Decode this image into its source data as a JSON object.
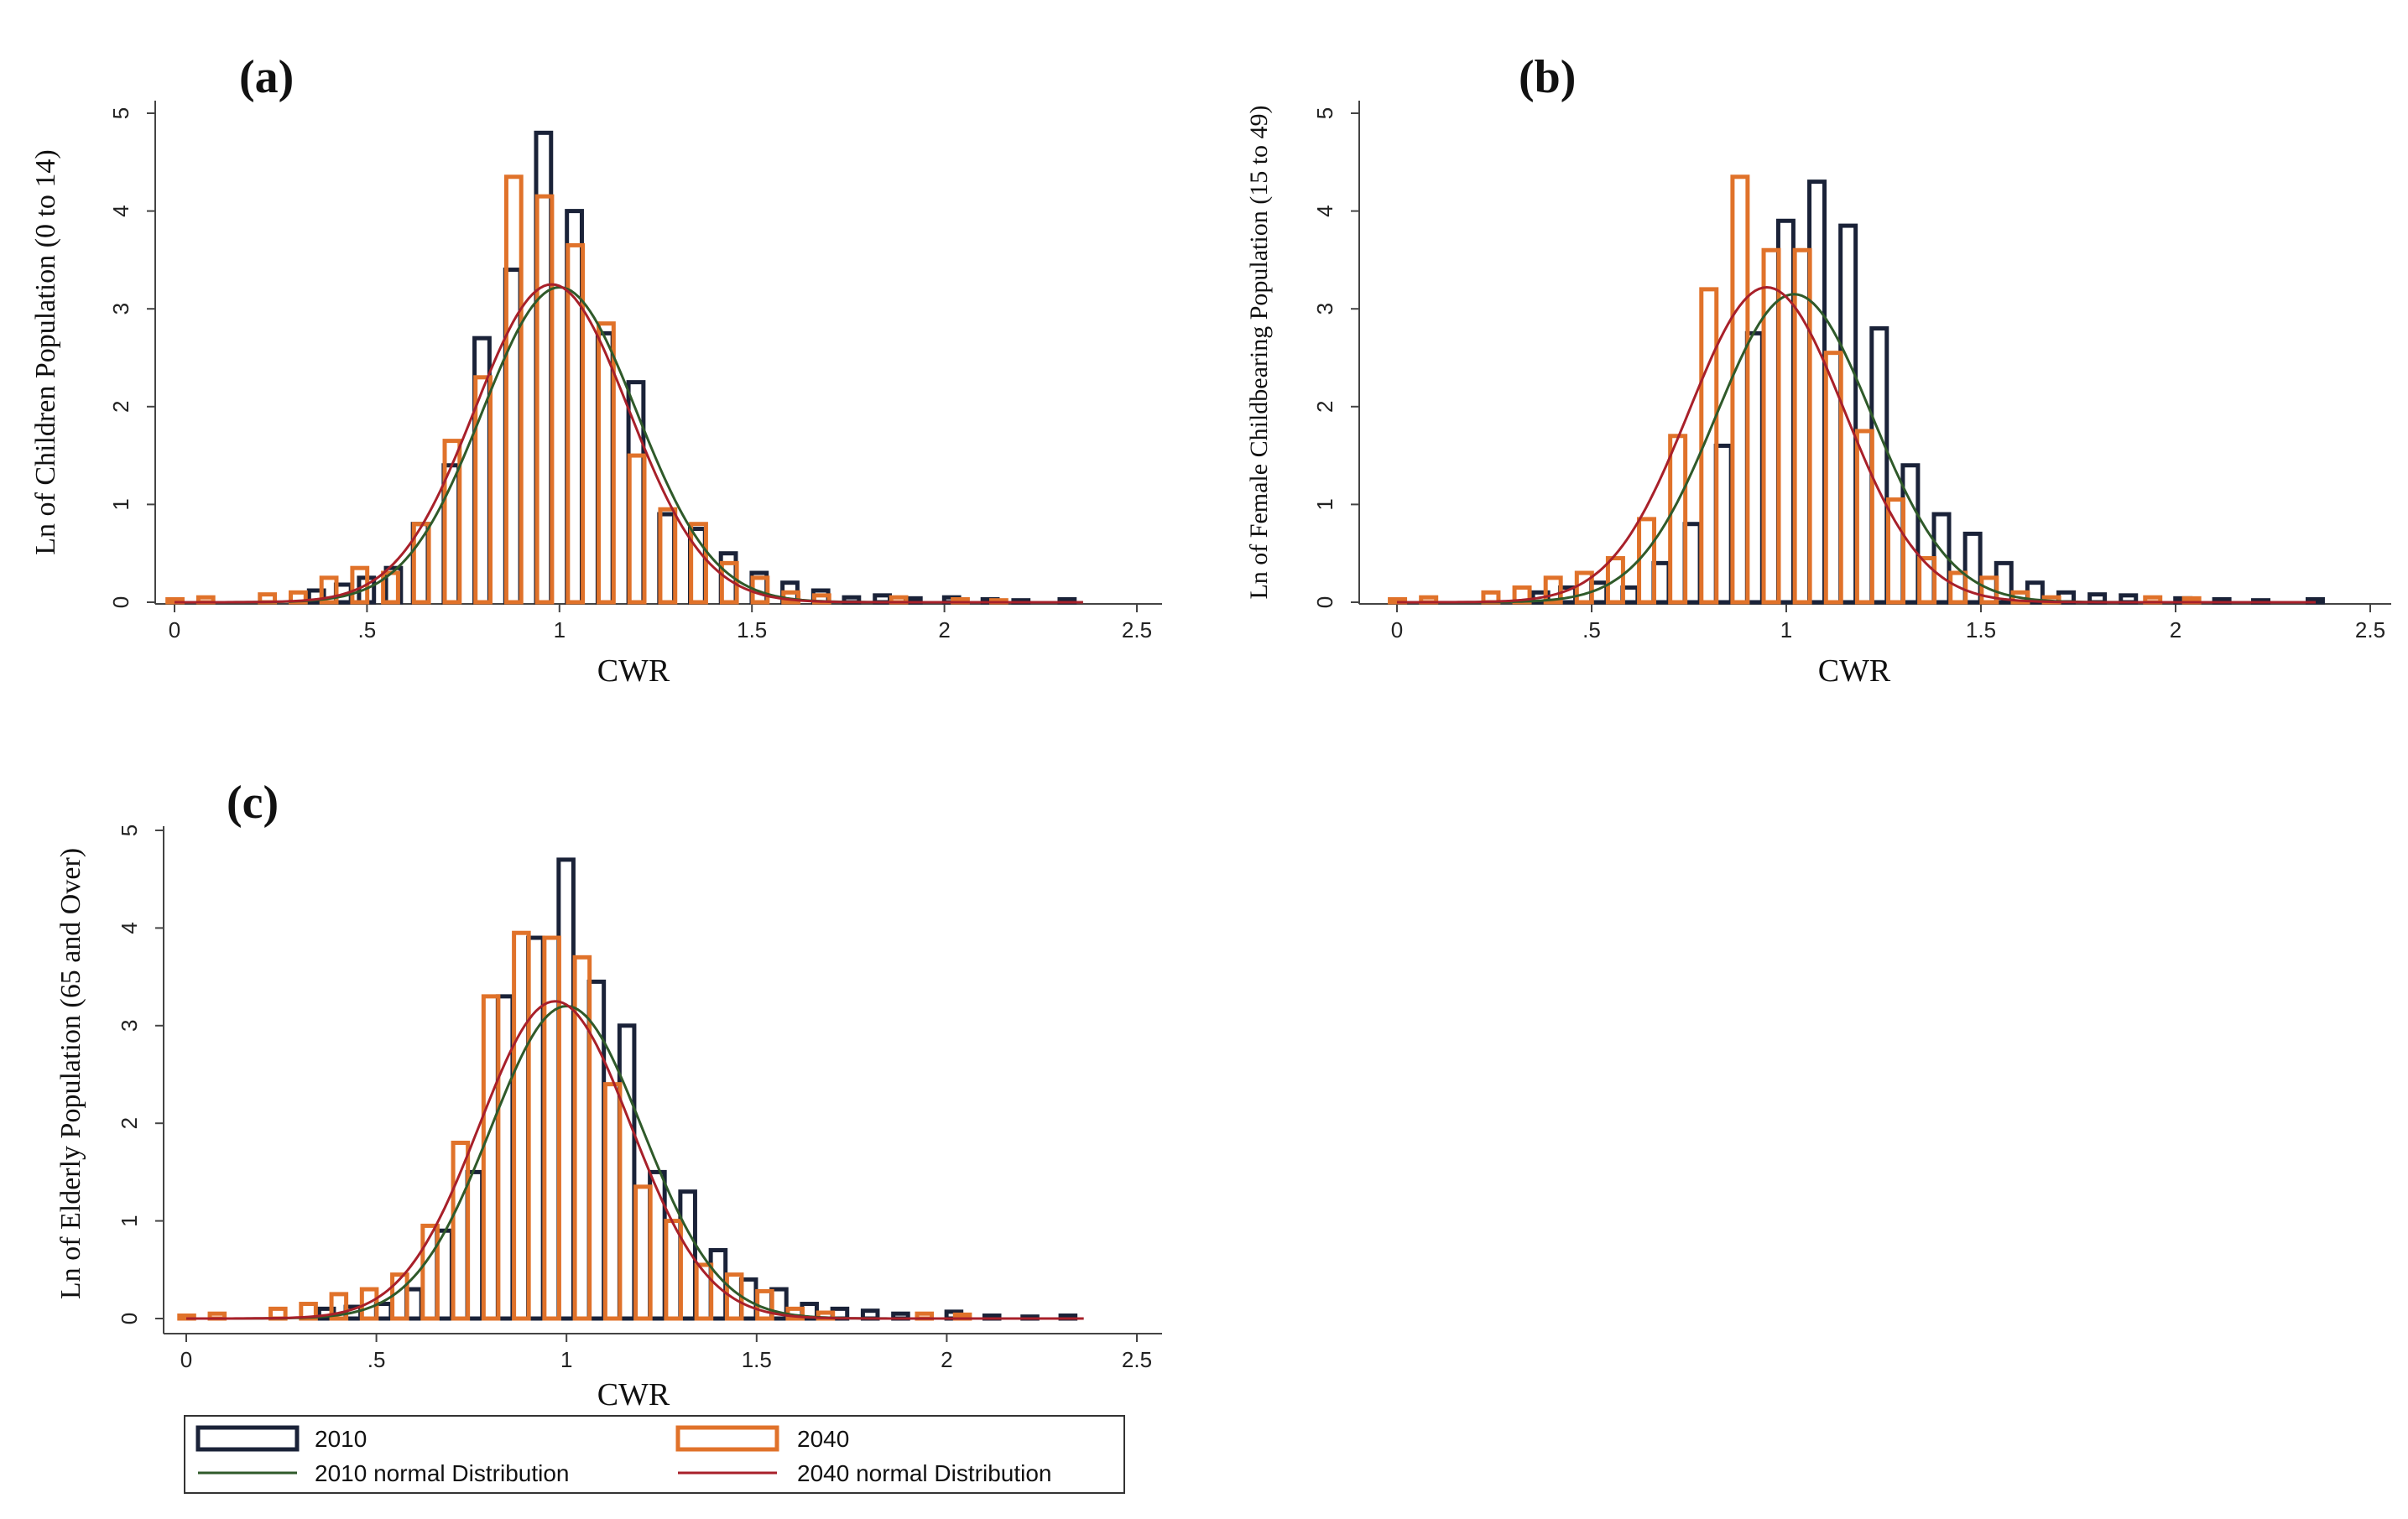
{
  "figure": {
    "legend": {
      "entries": [
        {
          "label": "2010",
          "kind": "bar"
        },
        {
          "label": "2040",
          "kind": "bar"
        },
        {
          "label": "2010 normal Distribution",
          "kind": "line"
        },
        {
          "label": "2040 normal Distribution",
          "kind": "line"
        }
      ]
    },
    "colors": {
      "s2010": "#1a2238",
      "s2040": "#e0722a",
      "n2010": "#2f5a2a",
      "n2040": "#a8202a"
    }
  },
  "chart_data": [
    {
      "type": "bar",
      "panel_label": "(a)",
      "xlabel": "CWR",
      "ylabel": "Ln of Children Population (0 to 14)",
      "xlim": [
        0,
        2.5
      ],
      "ylim": [
        0,
        5
      ],
      "xticks": [
        0,
        0.5,
        1,
        1.5,
        2,
        2.5
      ],
      "xtick_labels": [
        "0",
        ".5",
        "1",
        "1.5",
        "2",
        "2.5"
      ],
      "yticks": [
        0,
        1,
        2,
        3,
        4,
        5
      ],
      "ytick_labels": [
        "0",
        "1",
        "2",
        "3",
        "4",
        "5"
      ],
      "bin_width": 0.0625,
      "series": [
        {
          "name": "2010",
          "bins": [
            [
              0.35,
              0.12
            ],
            [
              0.42,
              0.18
            ],
            [
              0.48,
              0.25
            ],
            [
              0.55,
              0.35
            ],
            [
              0.62,
              0.8
            ],
            [
              0.7,
              1.4
            ],
            [
              0.78,
              2.7
            ],
            [
              0.86,
              3.4
            ],
            [
              0.94,
              4.8
            ],
            [
              1.02,
              4.0
            ],
            [
              1.1,
              2.75
            ],
            [
              1.18,
              2.25
            ],
            [
              1.26,
              0.9
            ],
            [
              1.34,
              0.75
            ],
            [
              1.42,
              0.5
            ],
            [
              1.5,
              0.3
            ],
            [
              1.58,
              0.2
            ],
            [
              1.66,
              0.12
            ],
            [
              1.74,
              0.05
            ],
            [
              1.82,
              0.07
            ],
            [
              1.9,
              0.04
            ],
            [
              2.0,
              0.05
            ],
            [
              2.1,
              0.03
            ],
            [
              2.18,
              0.02
            ],
            [
              2.3,
              0.03
            ]
          ]
        },
        {
          "name": "2040",
          "bins": [
            [
              0.02,
              0.03
            ],
            [
              0.1,
              0.05
            ],
            [
              0.26,
              0.08
            ],
            [
              0.34,
              0.1
            ],
            [
              0.42,
              0.25
            ],
            [
              0.5,
              0.35
            ],
            [
              0.58,
              0.3
            ],
            [
              0.66,
              0.8
            ],
            [
              0.74,
              1.65
            ],
            [
              0.82,
              2.3
            ],
            [
              0.9,
              4.35
            ],
            [
              0.98,
              4.15
            ],
            [
              1.06,
              3.65
            ],
            [
              1.14,
              2.85
            ],
            [
              1.22,
              1.5
            ],
            [
              1.3,
              0.95
            ],
            [
              1.38,
              0.8
            ],
            [
              1.46,
              0.4
            ],
            [
              1.54,
              0.25
            ],
            [
              1.62,
              0.1
            ],
            [
              1.7,
              0.07
            ],
            [
              1.9,
              0.05
            ],
            [
              2.06,
              0.03
            ],
            [
              2.16,
              0.02
            ]
          ]
        }
      ],
      "normal_curves": [
        {
          "name": "2010 normal Distribution",
          "mean": 1.0,
          "peak": 3.22,
          "sd": 0.2
        },
        {
          "name": "2040 normal Distribution",
          "mean": 0.98,
          "peak": 3.25,
          "sd": 0.2
        }
      ]
    },
    {
      "type": "bar",
      "panel_label": "(b)",
      "xlabel": "CWR",
      "ylabel": "Ln of Female Childbearing Population (15 to 49)",
      "xlim": [
        0,
        2.5
      ],
      "ylim": [
        0,
        5
      ],
      "xticks": [
        0,
        0.5,
        1,
        1.5,
        2,
        2.5
      ],
      "xtick_labels": [
        "0",
        ".5",
        "1",
        "1.5",
        "2",
        "2.5"
      ],
      "yticks": [
        0,
        1,
        2,
        3,
        4,
        5
      ],
      "ytick_labels": [
        "0",
        "1",
        "2",
        "3",
        "4",
        "5"
      ],
      "bin_width": 0.0625,
      "series": [
        {
          "name": "2010",
          "bins": [
            [
              0.35,
              0.1
            ],
            [
              0.42,
              0.15
            ],
            [
              0.5,
              0.2
            ],
            [
              0.58,
              0.15
            ],
            [
              0.66,
              0.4
            ],
            [
              0.74,
              0.8
            ],
            [
              0.82,
              1.6
            ],
            [
              0.9,
              2.75
            ],
            [
              0.98,
              3.9
            ],
            [
              1.06,
              4.3
            ],
            [
              1.14,
              3.85
            ],
            [
              1.22,
              2.8
            ],
            [
              1.3,
              1.4
            ],
            [
              1.38,
              0.9
            ],
            [
              1.46,
              0.7
            ],
            [
              1.54,
              0.4
            ],
            [
              1.62,
              0.2
            ],
            [
              1.7,
              0.1
            ],
            [
              1.78,
              0.08
            ],
            [
              1.86,
              0.07
            ],
            [
              2.0,
              0.04
            ],
            [
              2.1,
              0.03
            ],
            [
              2.2,
              0.02
            ],
            [
              2.34,
              0.03
            ]
          ]
        },
        {
          "name": "2040",
          "bins": [
            [
              0.02,
              0.03
            ],
            [
              0.1,
              0.05
            ],
            [
              0.26,
              0.1
            ],
            [
              0.34,
              0.15
            ],
            [
              0.42,
              0.25
            ],
            [
              0.5,
              0.3
            ],
            [
              0.58,
              0.45
            ],
            [
              0.66,
              0.85
            ],
            [
              0.74,
              1.7
            ],
            [
              0.82,
              3.2
            ],
            [
              0.9,
              4.35
            ],
            [
              0.98,
              3.6
            ],
            [
              1.06,
              3.6
            ],
            [
              1.14,
              2.55
            ],
            [
              1.22,
              1.75
            ],
            [
              1.3,
              1.05
            ],
            [
              1.38,
              0.45
            ],
            [
              1.46,
              0.3
            ],
            [
              1.54,
              0.25
            ],
            [
              1.62,
              0.1
            ],
            [
              1.7,
              0.05
            ],
            [
              1.96,
              0.05
            ],
            [
              2.06,
              0.04
            ]
          ]
        }
      ],
      "normal_curves": [
        {
          "name": "2010 normal Distribution",
          "mean": 1.02,
          "peak": 3.15,
          "sd": 0.2
        },
        {
          "name": "2040 normal Distribution",
          "mean": 0.95,
          "peak": 3.22,
          "sd": 0.2
        }
      ]
    },
    {
      "type": "bar",
      "panel_label": "(c)",
      "xlabel": "CWR",
      "ylabel": "Ln of Elderly Population (65 and Over)",
      "xlim": [
        0,
        2.5
      ],
      "ylim": [
        0,
        5
      ],
      "xticks": [
        0,
        0.5,
        1,
        1.5,
        2,
        2.5
      ],
      "xtick_labels": [
        "0",
        ".5",
        "1",
        "1.5",
        "2",
        "2.5"
      ],
      "yticks": [
        0,
        1,
        2,
        3,
        4,
        5
      ],
      "ytick_labels": [
        "0",
        "1",
        "2",
        "3",
        "4",
        "5"
      ],
      "bin_width": 0.0625,
      "series": [
        {
          "name": "2010",
          "bins": [
            [
              0.35,
              0.1
            ],
            [
              0.42,
              0.12
            ],
            [
              0.5,
              0.15
            ],
            [
              0.58,
              0.3
            ],
            [
              0.66,
              0.9
            ],
            [
              0.74,
              1.5
            ],
            [
              0.82,
              3.3
            ],
            [
              0.9,
              3.9
            ],
            [
              0.98,
              4.7
            ],
            [
              1.06,
              3.45
            ],
            [
              1.14,
              3.0
            ],
            [
              1.22,
              1.5
            ],
            [
              1.3,
              1.3
            ],
            [
              1.38,
              0.7
            ],
            [
              1.46,
              0.4
            ],
            [
              1.54,
              0.3
            ],
            [
              1.62,
              0.15
            ],
            [
              1.7,
              0.1
            ],
            [
              1.78,
              0.08
            ],
            [
              1.86,
              0.05
            ],
            [
              2.0,
              0.07
            ],
            [
              2.1,
              0.03
            ],
            [
              2.2,
              0.02
            ],
            [
              2.3,
              0.03
            ]
          ]
        },
        {
          "name": "2040",
          "bins": [
            [
              0.02,
              0.03
            ],
            [
              0.1,
              0.05
            ],
            [
              0.26,
              0.1
            ],
            [
              0.34,
              0.15
            ],
            [
              0.42,
              0.25
            ],
            [
              0.5,
              0.3
            ],
            [
              0.58,
              0.45
            ],
            [
              0.66,
              0.95
            ],
            [
              0.74,
              1.8
            ],
            [
              0.82,
              3.3
            ],
            [
              0.9,
              3.95
            ],
            [
              0.98,
              3.9
            ],
            [
              1.06,
              3.7
            ],
            [
              1.14,
              2.4
            ],
            [
              1.22,
              1.35
            ],
            [
              1.3,
              1.0
            ],
            [
              1.38,
              0.55
            ],
            [
              1.46,
              0.45
            ],
            [
              1.54,
              0.28
            ],
            [
              1.62,
              0.1
            ],
            [
              1.7,
              0.06
            ],
            [
              1.96,
              0.05
            ],
            [
              2.06,
              0.04
            ]
          ]
        }
      ],
      "normal_curves": [
        {
          "name": "2010 normal Distribution",
          "mean": 1.0,
          "peak": 3.2,
          "sd": 0.2
        },
        {
          "name": "2040 normal Distribution",
          "mean": 0.97,
          "peak": 3.25,
          "sd": 0.2
        }
      ]
    }
  ]
}
